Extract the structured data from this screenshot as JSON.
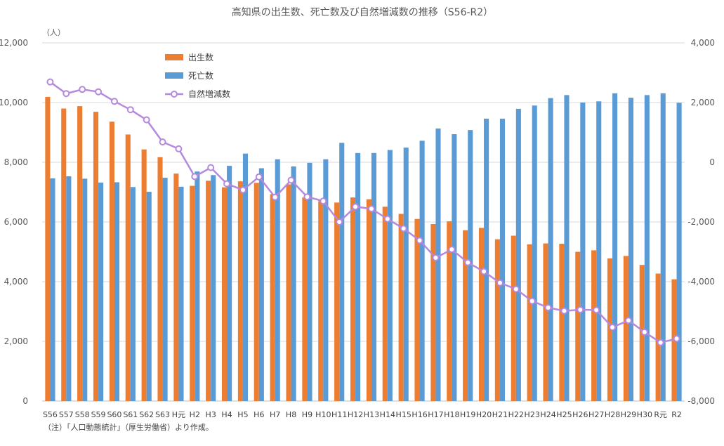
{
  "chart_data": {
    "type": "bar",
    "title": "高知県の出生数、死亡数及び自然増減数の推移（S56-R2）",
    "y_unit": "（人）",
    "note": "（注）「人口動態統計」（厚生労働省）より作成。",
    "categories": [
      "S56",
      "S57",
      "S58",
      "S59",
      "S60",
      "S61",
      "S62",
      "S63",
      "H元",
      "H2",
      "H3",
      "H4",
      "H5",
      "H6",
      "H7",
      "H8",
      "H9",
      "H10",
      "H11",
      "H12",
      "H13",
      "H14",
      "H15",
      "H16",
      "H17",
      "H18",
      "H19",
      "H20",
      "H21",
      "H22",
      "H23",
      "H24",
      "H25",
      "H26",
      "H27",
      "H28",
      "H29",
      "H30",
      "R元",
      "R2"
    ],
    "left_axis": {
      "min": 0,
      "max": 12000,
      "ticks": [
        "0",
        "2,000",
        "4,000",
        "6,000",
        "8,000",
        "10,000",
        "12,000"
      ]
    },
    "right_axis": {
      "min": -8000,
      "max": 4000,
      "ticks": [
        "-8,000",
        "-6,000",
        "-4,000",
        "-2,000",
        "0",
        "2,000",
        "4,000"
      ]
    },
    "grid": true,
    "legend_position": "top-left",
    "series": [
      {
        "name": "出生数",
        "type": "bar",
        "axis": "left",
        "color": "#ED7D31",
        "values": [
          10190,
          9800,
          9880,
          9690,
          9360,
          8930,
          8430,
          8170,
          7620,
          7210,
          7380,
          7160,
          7360,
          7310,
          6930,
          7260,
          6820,
          6700,
          6650,
          6820,
          6760,
          6510,
          6270,
          6100,
          5930,
          6020,
          5720,
          5800,
          5420,
          5540,
          5250,
          5280,
          5270,
          5000,
          5050,
          4780,
          4860,
          4560,
          4270,
          4080
        ]
      },
      {
        "name": "死亡数",
        "type": "bar",
        "axis": "left",
        "color": "#5B9BD5",
        "values": [
          7460,
          7530,
          7450,
          7320,
          7330,
          7170,
          7010,
          7480,
          7180,
          7690,
          7570,
          7880,
          8290,
          7800,
          8100,
          7860,
          7980,
          8100,
          8650,
          8310,
          8310,
          8410,
          8490,
          8720,
          9130,
          8940,
          9080,
          9460,
          9460,
          9790,
          9900,
          10150,
          10250,
          10000,
          10040,
          10310,
          10160,
          10250,
          10310,
          9990
        ]
      },
      {
        "name": "自然増減数",
        "type": "line",
        "axis": "right",
        "color": "#B589DD",
        "values": [
          2690,
          2300,
          2440,
          2360,
          2040,
          1760,
          1420,
          680,
          450,
          -480,
          -180,
          -720,
          -930,
          -490,
          -1170,
          -600,
          -1160,
          -1300,
          -2000,
          -1490,
          -1560,
          -1900,
          -2220,
          -2620,
          -3200,
          -2920,
          -3360,
          -3660,
          -4040,
          -4250,
          -4650,
          -4870,
          -4980,
          -4940,
          -4950,
          -5530,
          -5300,
          -5690,
          -6040,
          -5910
        ]
      }
    ]
  }
}
